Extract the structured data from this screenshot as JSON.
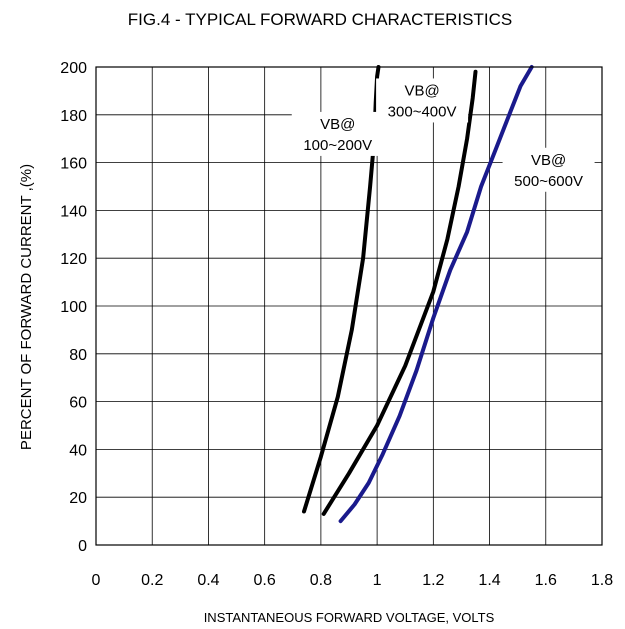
{
  "chart_data": {
    "type": "line",
    "title": "FIG.4 - TYPICAL FORWARD CHARACTERISTICS",
    "xlabel": "INSTANTANEOUS FORWARD VOLTAGE, VOLTS",
    "ylabel": "PERCENT OF FORWARD CURRENT ,(%)",
    "xlim": [
      0,
      1.8
    ],
    "ylim": [
      0,
      200
    ],
    "xticks": [
      "0",
      "0.2",
      "0.4",
      "0.6",
      "0.8",
      "1",
      "1.2",
      "1.4",
      "1.6",
      "1.8"
    ],
    "yticks": [
      "0",
      "20",
      "40",
      "60",
      "80",
      "100",
      "120",
      "140",
      "160",
      "180",
      "200"
    ],
    "grid": true,
    "series": [
      {
        "name": "VB@ 100~200V",
        "label_lines": [
          "VB@",
          "100~200V"
        ],
        "color": "#000000",
        "x": [
          0.74,
          0.8,
          0.86,
          0.91,
          0.95,
          0.975,
          0.99,
          0.995,
          1.0,
          1.005
        ],
        "y": [
          14,
          37,
          62,
          90,
          120,
          150,
          170,
          185,
          196,
          200
        ]
      },
      {
        "name": "VB@ 300~400V",
        "label_lines": [
          "VB@",
          "300~400V"
        ],
        "color": "#000000",
        "x": [
          0.81,
          0.9,
          1.0,
          1.1,
          1.2,
          1.25,
          1.29,
          1.32,
          1.34,
          1.35
        ],
        "y": [
          13,
          30,
          50,
          75,
          106,
          128,
          150,
          170,
          187,
          198
        ]
      },
      {
        "name": "VB@ 500~600V",
        "label_lines": [
          "VB@",
          "500~600V"
        ],
        "color": "#1a1a8c",
        "x": [
          0.87,
          0.92,
          0.97,
          1.02,
          1.08,
          1.14,
          1.2,
          1.26,
          1.32,
          1.37,
          1.42,
          1.47,
          1.51,
          1.55
        ],
        "y": [
          10,
          17,
          26,
          38,
          54,
          73,
          95,
          115,
          131,
          150,
          165,
          180,
          192,
          200
        ]
      }
    ],
    "annotations": [
      {
        "lines": [
          "VB@",
          "100~200V"
        ],
        "x": 0.86,
        "y": 172
      },
      {
        "lines": [
          "VB@",
          "300~400V"
        ],
        "x": 1.16,
        "y": 186
      },
      {
        "lines": [
          "VB@",
          "500~600V"
        ],
        "x": 1.61,
        "y": 157
      }
    ]
  }
}
